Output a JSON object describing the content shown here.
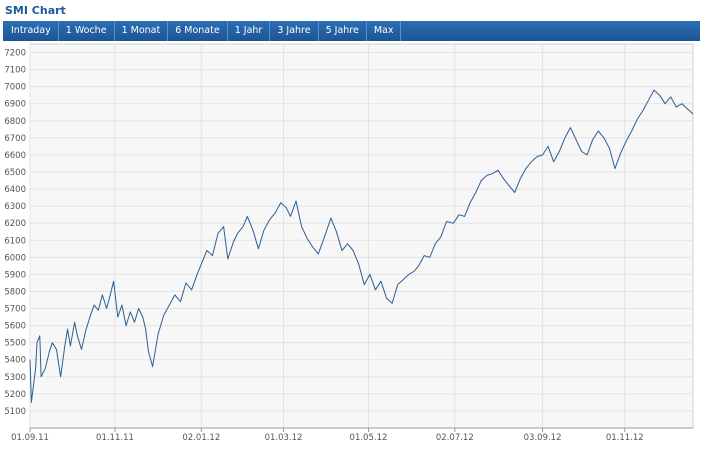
{
  "header": {
    "title": "SMI Chart"
  },
  "tabs": [
    {
      "label": "Intraday"
    },
    {
      "label": "1 Woche"
    },
    {
      "label": "1 Monat"
    },
    {
      "label": "6 Monate"
    },
    {
      "label": "1 Jahr"
    },
    {
      "label": "3 Jahre"
    },
    {
      "label": "5 Jahre"
    },
    {
      "label": "Max"
    }
  ],
  "colors": {
    "accent": "#1e5b9e",
    "line": "#2d5e94",
    "grid": "#e3e3e3",
    "plot_bg": "#f7f7f7"
  },
  "chart_data": {
    "type": "line",
    "title": "",
    "xlabel": "",
    "ylabel": "",
    "ylim": [
      5000,
      7250
    ],
    "yticks": [
      5100,
      5200,
      5300,
      5400,
      5500,
      5600,
      5700,
      5800,
      5900,
      6000,
      6100,
      6200,
      6300,
      6400,
      6500,
      6600,
      6700,
      6800,
      6900,
      7000,
      7100,
      7200
    ],
    "xticks": [
      "01.09.11",
      "01.11.11",
      "02.01.12",
      "01.03.12",
      "01.05.12",
      "02.07.12",
      "03.09.12",
      "01.11.12"
    ],
    "xlim": [
      "2011-09-01",
      "2012-12-20"
    ],
    "grid": true,
    "series": [
      {
        "x": [
          "2011-09-01",
          "2011-09-02",
          "2011-09-05",
          "2011-09-06",
          "2011-09-08",
          "2011-09-09",
          "2011-09-12",
          "2011-09-15",
          "2011-09-17",
          "2011-09-20",
          "2011-09-23",
          "2011-09-26",
          "2011-09-28",
          "2011-09-30",
          "2011-10-03",
          "2011-10-05",
          "2011-10-08",
          "2011-10-11",
          "2011-10-14",
          "2011-10-17",
          "2011-10-20",
          "2011-10-23",
          "2011-10-26",
          "2011-10-28",
          "2011-10-31",
          "2011-11-03",
          "2011-11-06",
          "2011-11-09",
          "2011-11-12",
          "2011-11-15",
          "2011-11-18",
          "2011-11-21",
          "2011-11-23",
          "2011-11-25",
          "2011-11-28",
          "2011-12-02",
          "2011-12-06",
          "2011-12-10",
          "2011-12-14",
          "2011-12-18",
          "2011-12-22",
          "2011-12-26",
          "2011-12-30",
          "2012-01-03",
          "2012-01-06",
          "2012-01-10",
          "2012-01-14",
          "2012-01-18",
          "2012-01-21",
          "2012-01-25",
          "2012-01-28",
          "2012-02-01",
          "2012-02-04",
          "2012-02-08",
          "2012-02-12",
          "2012-02-16",
          "2012-02-20",
          "2012-02-24",
          "2012-02-28",
          "2012-03-03",
          "2012-03-06",
          "2012-03-10",
          "2012-03-14",
          "2012-03-18",
          "2012-03-22",
          "2012-03-26",
          "2012-03-30",
          "2012-04-04",
          "2012-04-08",
          "2012-04-12",
          "2012-04-16",
          "2012-04-20",
          "2012-04-24",
          "2012-04-28",
          "2012-05-02",
          "2012-05-06",
          "2012-05-10",
          "2012-05-14",
          "2012-05-18",
          "2012-05-22",
          "2012-05-26",
          "2012-05-30",
          "2012-06-03",
          "2012-06-06",
          "2012-06-10",
          "2012-06-14",
          "2012-06-18",
          "2012-06-22",
          "2012-06-26",
          "2012-07-01",
          "2012-07-05",
          "2012-07-09",
          "2012-07-13",
          "2012-07-17",
          "2012-07-21",
          "2012-07-25",
          "2012-07-29",
          "2012-08-02",
          "2012-08-06",
          "2012-08-10",
          "2012-08-14",
          "2012-08-18",
          "2012-08-22",
          "2012-08-26",
          "2012-08-30",
          "2012-09-03",
          "2012-09-07",
          "2012-09-11",
          "2012-09-15",
          "2012-09-19",
          "2012-09-23",
          "2012-09-27",
          "2012-10-01",
          "2012-10-05",
          "2012-10-09",
          "2012-10-13",
          "2012-10-17",
          "2012-10-21",
          "2012-10-25",
          "2012-10-29",
          "2012-11-02",
          "2012-11-06",
          "2012-11-10",
          "2012-11-14",
          "2012-11-18",
          "2012-11-22",
          "2012-11-26",
          "2012-11-30",
          "2012-12-04",
          "2012-12-08",
          "2012-12-12",
          "2012-12-16",
          "2012-12-20"
        ],
        "y": [
          5400,
          5150,
          5350,
          5500,
          5540,
          5300,
          5350,
          5450,
          5500,
          5460,
          5300,
          5480,
          5580,
          5480,
          5620,
          5540,
          5460,
          5570,
          5650,
          5720,
          5690,
          5780,
          5700,
          5760,
          5860,
          5650,
          5720,
          5600,
          5680,
          5620,
          5700,
          5650,
          5580,
          5450,
          5360,
          5550,
          5660,
          5720,
          5780,
          5740,
          5850,
          5810,
          5900,
          5980,
          6040,
          6010,
          6140,
          6180,
          5990,
          6090,
          6140,
          6180,
          6240,
          6160,
          6050,
          6160,
          6220,
          6260,
          6320,
          6290,
          6240,
          6330,
          6180,
          6110,
          6060,
          6020,
          6110,
          6230,
          6150,
          6040,
          6080,
          6040,
          5960,
          5840,
          5900,
          5810,
          5860,
          5760,
          5730,
          5840,
          5870,
          5900,
          5920,
          5950,
          6010,
          6000,
          6080,
          6120,
          6210,
          6200,
          6250,
          6240,
          6320,
          6380,
          6450,
          6480,
          6490,
          6510,
          6460,
          6420,
          6380,
          6460,
          6520,
          6560,
          6590,
          6600,
          6650,
          6560,
          6620,
          6700,
          6760,
          6690,
          6620,
          6600,
          6690,
          6740,
          6700,
          6640,
          6520,
          6610,
          6680,
          6740,
          6810,
          6860,
          6920,
          6980,
          6950,
          6900,
          6940,
          6880,
          6900,
          6870,
          6840
        ]
      }
    ]
  }
}
